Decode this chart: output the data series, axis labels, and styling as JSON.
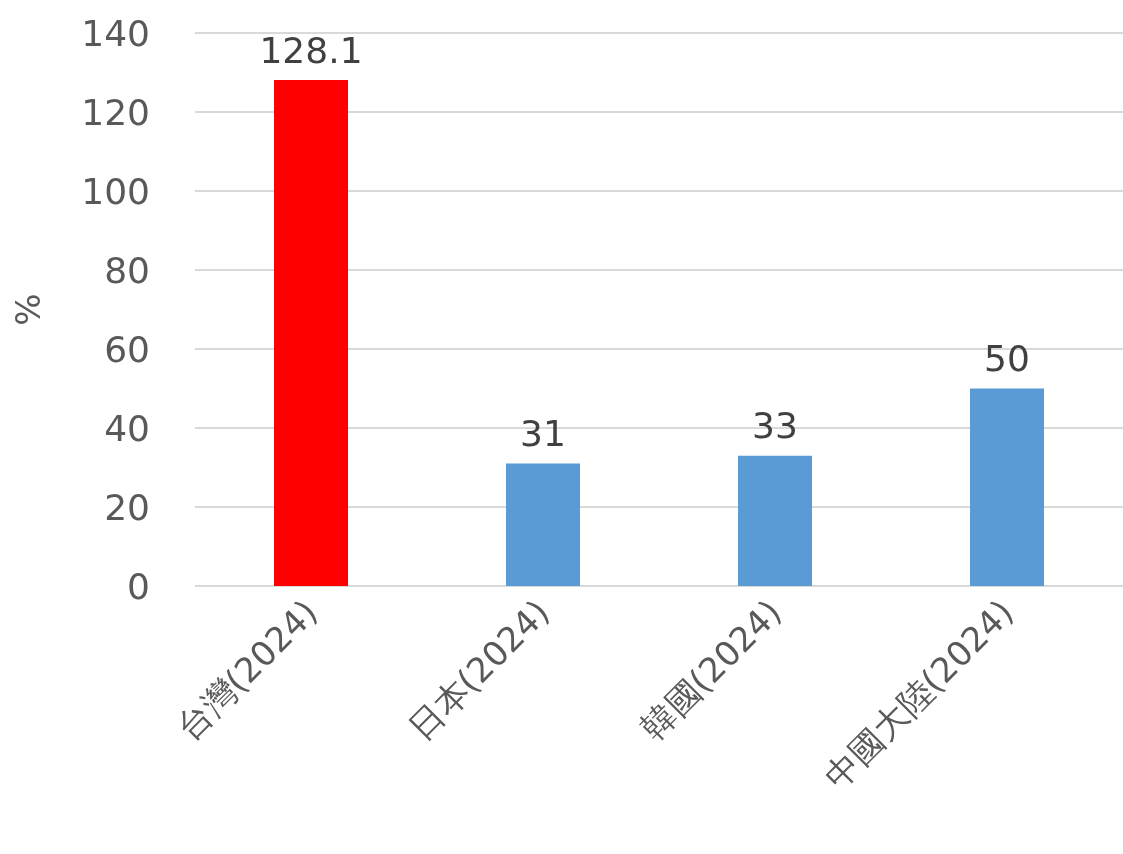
{
  "chart_data": {
    "type": "bar",
    "ylabel": "%",
    "categories": [
      "台灣(2024)",
      "日本(2024)",
      "韓國(2024)",
      "中國大陸(2024)"
    ],
    "values": [
      128.1,
      31,
      33,
      50
    ],
    "colors": [
      "#ff0000",
      "#5b9bd5",
      "#5b9bd5",
      "#5b9bd5"
    ],
    "ylim": [
      0,
      140
    ],
    "yticks": [
      0,
      20,
      40,
      60,
      80,
      100,
      120,
      140
    ],
    "grid": true,
    "data_labels": true
  }
}
